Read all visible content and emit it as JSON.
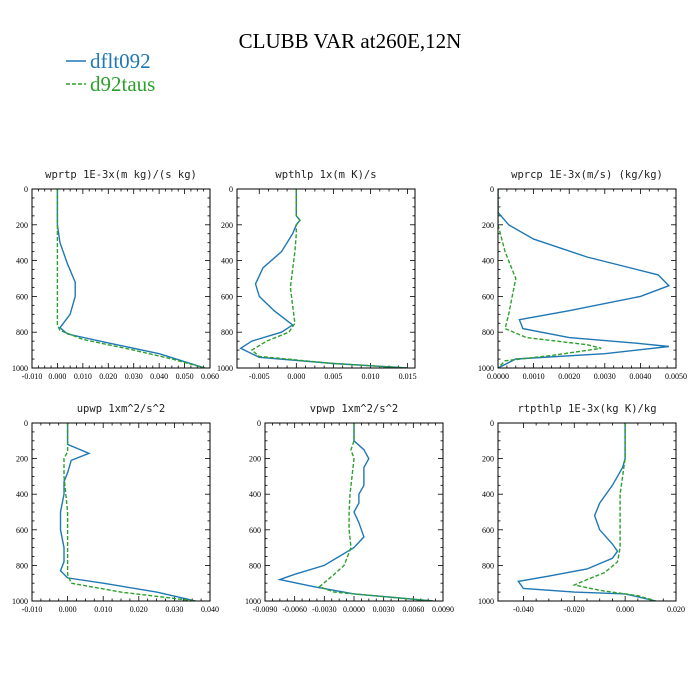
{
  "title": "CLUBB VAR at260E,12N",
  "colors": {
    "dflt092": "#1f77b4",
    "d92taus": "#2ca02c"
  },
  "legend": [
    {
      "label": "dflt092",
      "color": "#1f77b4",
      "dash": false
    },
    {
      "label": "d92taus",
      "color": "#2ca02c",
      "dash": true
    }
  ],
  "chart_data": [
    {
      "type": "line",
      "title": "wprtp  1E-3x(m kg)/(s kg)",
      "xlim": [
        -0.01,
        0.06
      ],
      "ylim": [
        1000,
        0
      ],
      "xticks": [
        -0.01,
        0.0,
        0.01,
        0.02,
        0.03,
        0.04,
        0.05,
        0.06
      ],
      "xtick_labels": [
        "-0.010",
        "0.000",
        "0.010",
        "0.020",
        "0.030",
        "0.040",
        "0.050",
        "0.060"
      ],
      "yticks": [
        0,
        200,
        400,
        600,
        800,
        1000
      ],
      "ytick_labels": [
        "0",
        "200",
        "400",
        "600",
        "800",
        "1000"
      ],
      "series": [
        {
          "name": "dflt092",
          "points": [
            [
              0.0,
              0
            ],
            [
              0.0,
              120
            ],
            [
              0.0,
              200
            ],
            [
              0.001,
              300
            ],
            [
              0.004,
              420
            ],
            [
              0.007,
              520
            ],
            [
              0.007,
              600
            ],
            [
              0.005,
              700
            ],
            [
              0.001,
              775
            ],
            [
              0.004,
              810
            ],
            [
              0.02,
              860
            ],
            [
              0.04,
              920
            ],
            [
              0.058,
              1000
            ]
          ]
        },
        {
          "name": "d92taus",
          "points": [
            [
              0.0,
              0
            ],
            [
              0.0,
              200
            ],
            [
              0.0,
              400
            ],
            [
              0.0,
              600
            ],
            [
              0.0,
              760
            ],
            [
              0.001,
              790
            ],
            [
              0.01,
              840
            ],
            [
              0.03,
              900
            ],
            [
              0.045,
              950
            ],
            [
              0.058,
              1000
            ]
          ]
        }
      ]
    },
    {
      "type": "line",
      "title": "wpthlp  1x(m K)/s",
      "xlim": [
        -0.008,
        0.016
      ],
      "ylim": [
        1000,
        0
      ],
      "xticks": [
        -0.005,
        0.0,
        0.005,
        0.01,
        0.015
      ],
      "xtick_labels": [
        "-0.005",
        "0.000",
        "0.005",
        "0.010",
        "0.015"
      ],
      "yticks": [
        0,
        200,
        400,
        600,
        800,
        1000
      ],
      "ytick_labels": [
        "0",
        "200",
        "400",
        "600",
        "800",
        "1000"
      ],
      "series": [
        {
          "name": "dflt092",
          "points": [
            [
              0.0,
              0
            ],
            [
              0.0,
              150
            ],
            [
              0.0005,
              175
            ],
            [
              0.0,
              200
            ],
            [
              -0.0005,
              250
            ],
            [
              -0.002,
              350
            ],
            [
              -0.0045,
              440
            ],
            [
              -0.0055,
              530
            ],
            [
              -0.005,
              600
            ],
            [
              -0.003,
              680
            ],
            [
              -0.0005,
              760
            ],
            [
              -0.002,
              800
            ],
            [
              -0.006,
              850
            ],
            [
              -0.0075,
              890
            ],
            [
              -0.005,
              940
            ],
            [
              0.005,
              975
            ],
            [
              0.015,
              1000
            ]
          ]
        },
        {
          "name": "d92taus",
          "points": [
            [
              0.0,
              0
            ],
            [
              0.0,
              150
            ],
            [
              0.0005,
              175
            ],
            [
              0.0,
              200
            ],
            [
              0.0,
              250
            ],
            [
              -0.0002,
              350
            ],
            [
              -0.0005,
              450
            ],
            [
              -0.0008,
              550
            ],
            [
              -0.0005,
              650
            ],
            [
              -0.0002,
              750
            ],
            [
              -0.001,
              800
            ],
            [
              -0.004,
              850
            ],
            [
              -0.006,
              900
            ],
            [
              -0.005,
              935
            ],
            [
              0.005,
              975
            ],
            [
              0.015,
              1000
            ]
          ]
        }
      ]
    },
    {
      "type": "line",
      "title": "wprcp  1E-3x(m/s) (kg/kg)",
      "xlim": [
        0.0,
        0.005
      ],
      "ylim": [
        1000,
        0
      ],
      "xticks": [
        0.0,
        0.001,
        0.002,
        0.003,
        0.004,
        0.005
      ],
      "xtick_labels": [
        "0.0000",
        "0.0010",
        "0.0020",
        "0.0030",
        "0.0040",
        "0.0050"
      ],
      "yticks": [
        0,
        200,
        400,
        600,
        800,
        1000
      ],
      "ytick_labels": [
        "0",
        "200",
        "400",
        "600",
        "800",
        "1000"
      ],
      "series": [
        {
          "name": "dflt092",
          "points": [
            [
              0.0,
              0
            ],
            [
              0.0,
              130
            ],
            [
              0.0003,
              200
            ],
            [
              0.001,
              280
            ],
            [
              0.0025,
              380
            ],
            [
              0.0045,
              480
            ],
            [
              0.0048,
              540
            ],
            [
              0.004,
              600
            ],
            [
              0.002,
              680
            ],
            [
              0.0006,
              730
            ],
            [
              0.0007,
              780
            ],
            [
              0.002,
              830
            ],
            [
              0.0038,
              860
            ],
            [
              0.0048,
              880
            ],
            [
              0.003,
              920
            ],
            [
              0.0005,
              950
            ],
            [
              0.0,
              1000
            ]
          ]
        },
        {
          "name": "d92taus",
          "points": [
            [
              0.0,
              0
            ],
            [
              0.0,
              200
            ],
            [
              0.0002,
              350
            ],
            [
              0.0004,
              450
            ],
            [
              0.0005,
              500
            ],
            [
              0.0004,
              600
            ],
            [
              0.0003,
              700
            ],
            [
              0.0002,
              780
            ],
            [
              0.0008,
              830
            ],
            [
              0.0025,
              870
            ],
            [
              0.0029,
              890
            ],
            [
              0.0015,
              930
            ],
            [
              0.0002,
              960
            ],
            [
              0.0,
              1000
            ]
          ]
        }
      ]
    },
    {
      "type": "line",
      "title": "upwp  1xm^2/s^2",
      "xlim": [
        -0.01,
        0.04
      ],
      "ylim": [
        1000,
        0
      ],
      "xticks": [
        -0.01,
        0.0,
        0.01,
        0.02,
        0.03,
        0.04
      ],
      "xtick_labels": [
        "-0.010",
        "0.000",
        "0.010",
        "0.020",
        "0.030",
        "0.040"
      ],
      "yticks": [
        0,
        200,
        400,
        600,
        800,
        1000
      ],
      "ytick_labels": [
        "0",
        "200",
        "400",
        "600",
        "800",
        "1000"
      ],
      "series": [
        {
          "name": "dflt092",
          "points": [
            [
              0.0,
              0
            ],
            [
              0.0,
              120
            ],
            [
              0.006,
              170
            ],
            [
              0.001,
              210
            ],
            [
              0.0,
              280
            ],
            [
              -0.001,
              330
            ],
            [
              -0.001,
              400
            ],
            [
              -0.002,
              500
            ],
            [
              -0.002,
              600
            ],
            [
              -0.001,
              700
            ],
            [
              -0.001,
              780
            ],
            [
              -0.002,
              830
            ],
            [
              0.0,
              870
            ],
            [
              0.01,
              900
            ],
            [
              0.025,
              950
            ],
            [
              0.036,
              1000
            ]
          ]
        },
        {
          "name": "d92taus",
          "points": [
            [
              0.0,
              0
            ],
            [
              0.0,
              120
            ],
            [
              0.0,
              160
            ],
            [
              -0.001,
              200
            ],
            [
              -0.001,
              300
            ],
            [
              0.0,
              500
            ],
            [
              0.0,
              700
            ],
            [
              0.0,
              850
            ],
            [
              0.001,
              900
            ],
            [
              0.015,
              950
            ],
            [
              0.036,
              1000
            ]
          ]
        }
      ]
    },
    {
      "type": "line",
      "title": "vpwp  1xm^2/s^2",
      "xlim": [
        -0.009,
        0.009
      ],
      "ylim": [
        1000,
        0
      ],
      "xticks": [
        -0.009,
        -0.006,
        -0.003,
        0.0,
        0.003,
        0.006,
        0.009
      ],
      "xtick_labels": [
        "-0.0090",
        "-0.0060",
        "-0.0030",
        "0.0000",
        "0.0030",
        "0.0060",
        "0.0090"
      ],
      "yticks": [
        0,
        200,
        400,
        600,
        800,
        1000
      ],
      "ytick_labels": [
        "0",
        "200",
        "400",
        "600",
        "800",
        "1000"
      ],
      "series": [
        {
          "name": "dflt092",
          "points": [
            [
              0.0,
              0
            ],
            [
              0.0,
              100
            ],
            [
              0.001,
              150
            ],
            [
              0.0015,
              200
            ],
            [
              0.001,
              250
            ],
            [
              0.001,
              300
            ],
            [
              0.001,
              350
            ],
            [
              0.0005,
              400
            ],
            [
              0.0005,
              450
            ],
            [
              0.0,
              500
            ],
            [
              0.0005,
              560
            ],
            [
              0.001,
              640
            ],
            [
              0.0,
              700
            ],
            [
              -0.003,
              800
            ],
            [
              -0.006,
              850
            ],
            [
              -0.0075,
              880
            ],
            [
              -0.004,
              920
            ],
            [
              0.0,
              960
            ],
            [
              0.008,
              1000
            ]
          ]
        },
        {
          "name": "d92taus",
          "points": [
            [
              0.0,
              0
            ],
            [
              0.0,
              100
            ],
            [
              -0.0003,
              150
            ],
            [
              0.0,
              200
            ],
            [
              -0.0002,
              300
            ],
            [
              -0.0004,
              400
            ],
            [
              -0.0005,
              500
            ],
            [
              -0.0005,
              600
            ],
            [
              -0.0003,
              700
            ],
            [
              -0.001,
              800
            ],
            [
              -0.002,
              850
            ],
            [
              -0.0035,
              920
            ],
            [
              -0.002,
              950
            ],
            [
              0.002,
              970
            ],
            [
              0.008,
              1000
            ]
          ]
        }
      ]
    },
    {
      "type": "line",
      "title": "rtpthlp  1E-3x(kg K)/kg",
      "xlim": [
        -0.05,
        0.02
      ],
      "ylim": [
        1000,
        0
      ],
      "xticks": [
        -0.04,
        -0.02,
        0.0,
        0.02
      ],
      "xtick_labels": [
        "-0.040",
        "-0.020",
        "0.000",
        "0.020"
      ],
      "yticks": [
        0,
        200,
        400,
        600,
        800,
        1000
      ],
      "ytick_labels": [
        "0",
        "200",
        "400",
        "600",
        "800",
        "1000"
      ],
      "series": [
        {
          "name": "dflt092",
          "points": [
            [
              0.0,
              0
            ],
            [
              0.0,
              200
            ],
            [
              -0.001,
              250
            ],
            [
              -0.005,
              350
            ],
            [
              -0.01,
              450
            ],
            [
              -0.012,
              520
            ],
            [
              -0.01,
              600
            ],
            [
              -0.005,
              680
            ],
            [
              -0.003,
              720
            ],
            [
              -0.005,
              760
            ],
            [
              -0.015,
              820
            ],
            [
              -0.03,
              860
            ],
            [
              -0.042,
              890
            ],
            [
              -0.04,
              930
            ],
            [
              -0.02,
              950
            ],
            [
              0.0,
              960
            ],
            [
              0.012,
              1000
            ]
          ]
        },
        {
          "name": "d92taus",
          "points": [
            [
              0.0,
              0
            ],
            [
              0.0,
              200
            ],
            [
              -0.001,
              300
            ],
            [
              -0.002,
              400
            ],
            [
              -0.002,
              500
            ],
            [
              -0.002,
              600
            ],
            [
              -0.002,
              700
            ],
            [
              -0.003,
              780
            ],
            [
              -0.008,
              840
            ],
            [
              -0.015,
              880
            ],
            [
              -0.02,
              910
            ],
            [
              -0.01,
              940
            ],
            [
              0.005,
              970
            ],
            [
              0.012,
              1000
            ]
          ]
        }
      ]
    }
  ]
}
